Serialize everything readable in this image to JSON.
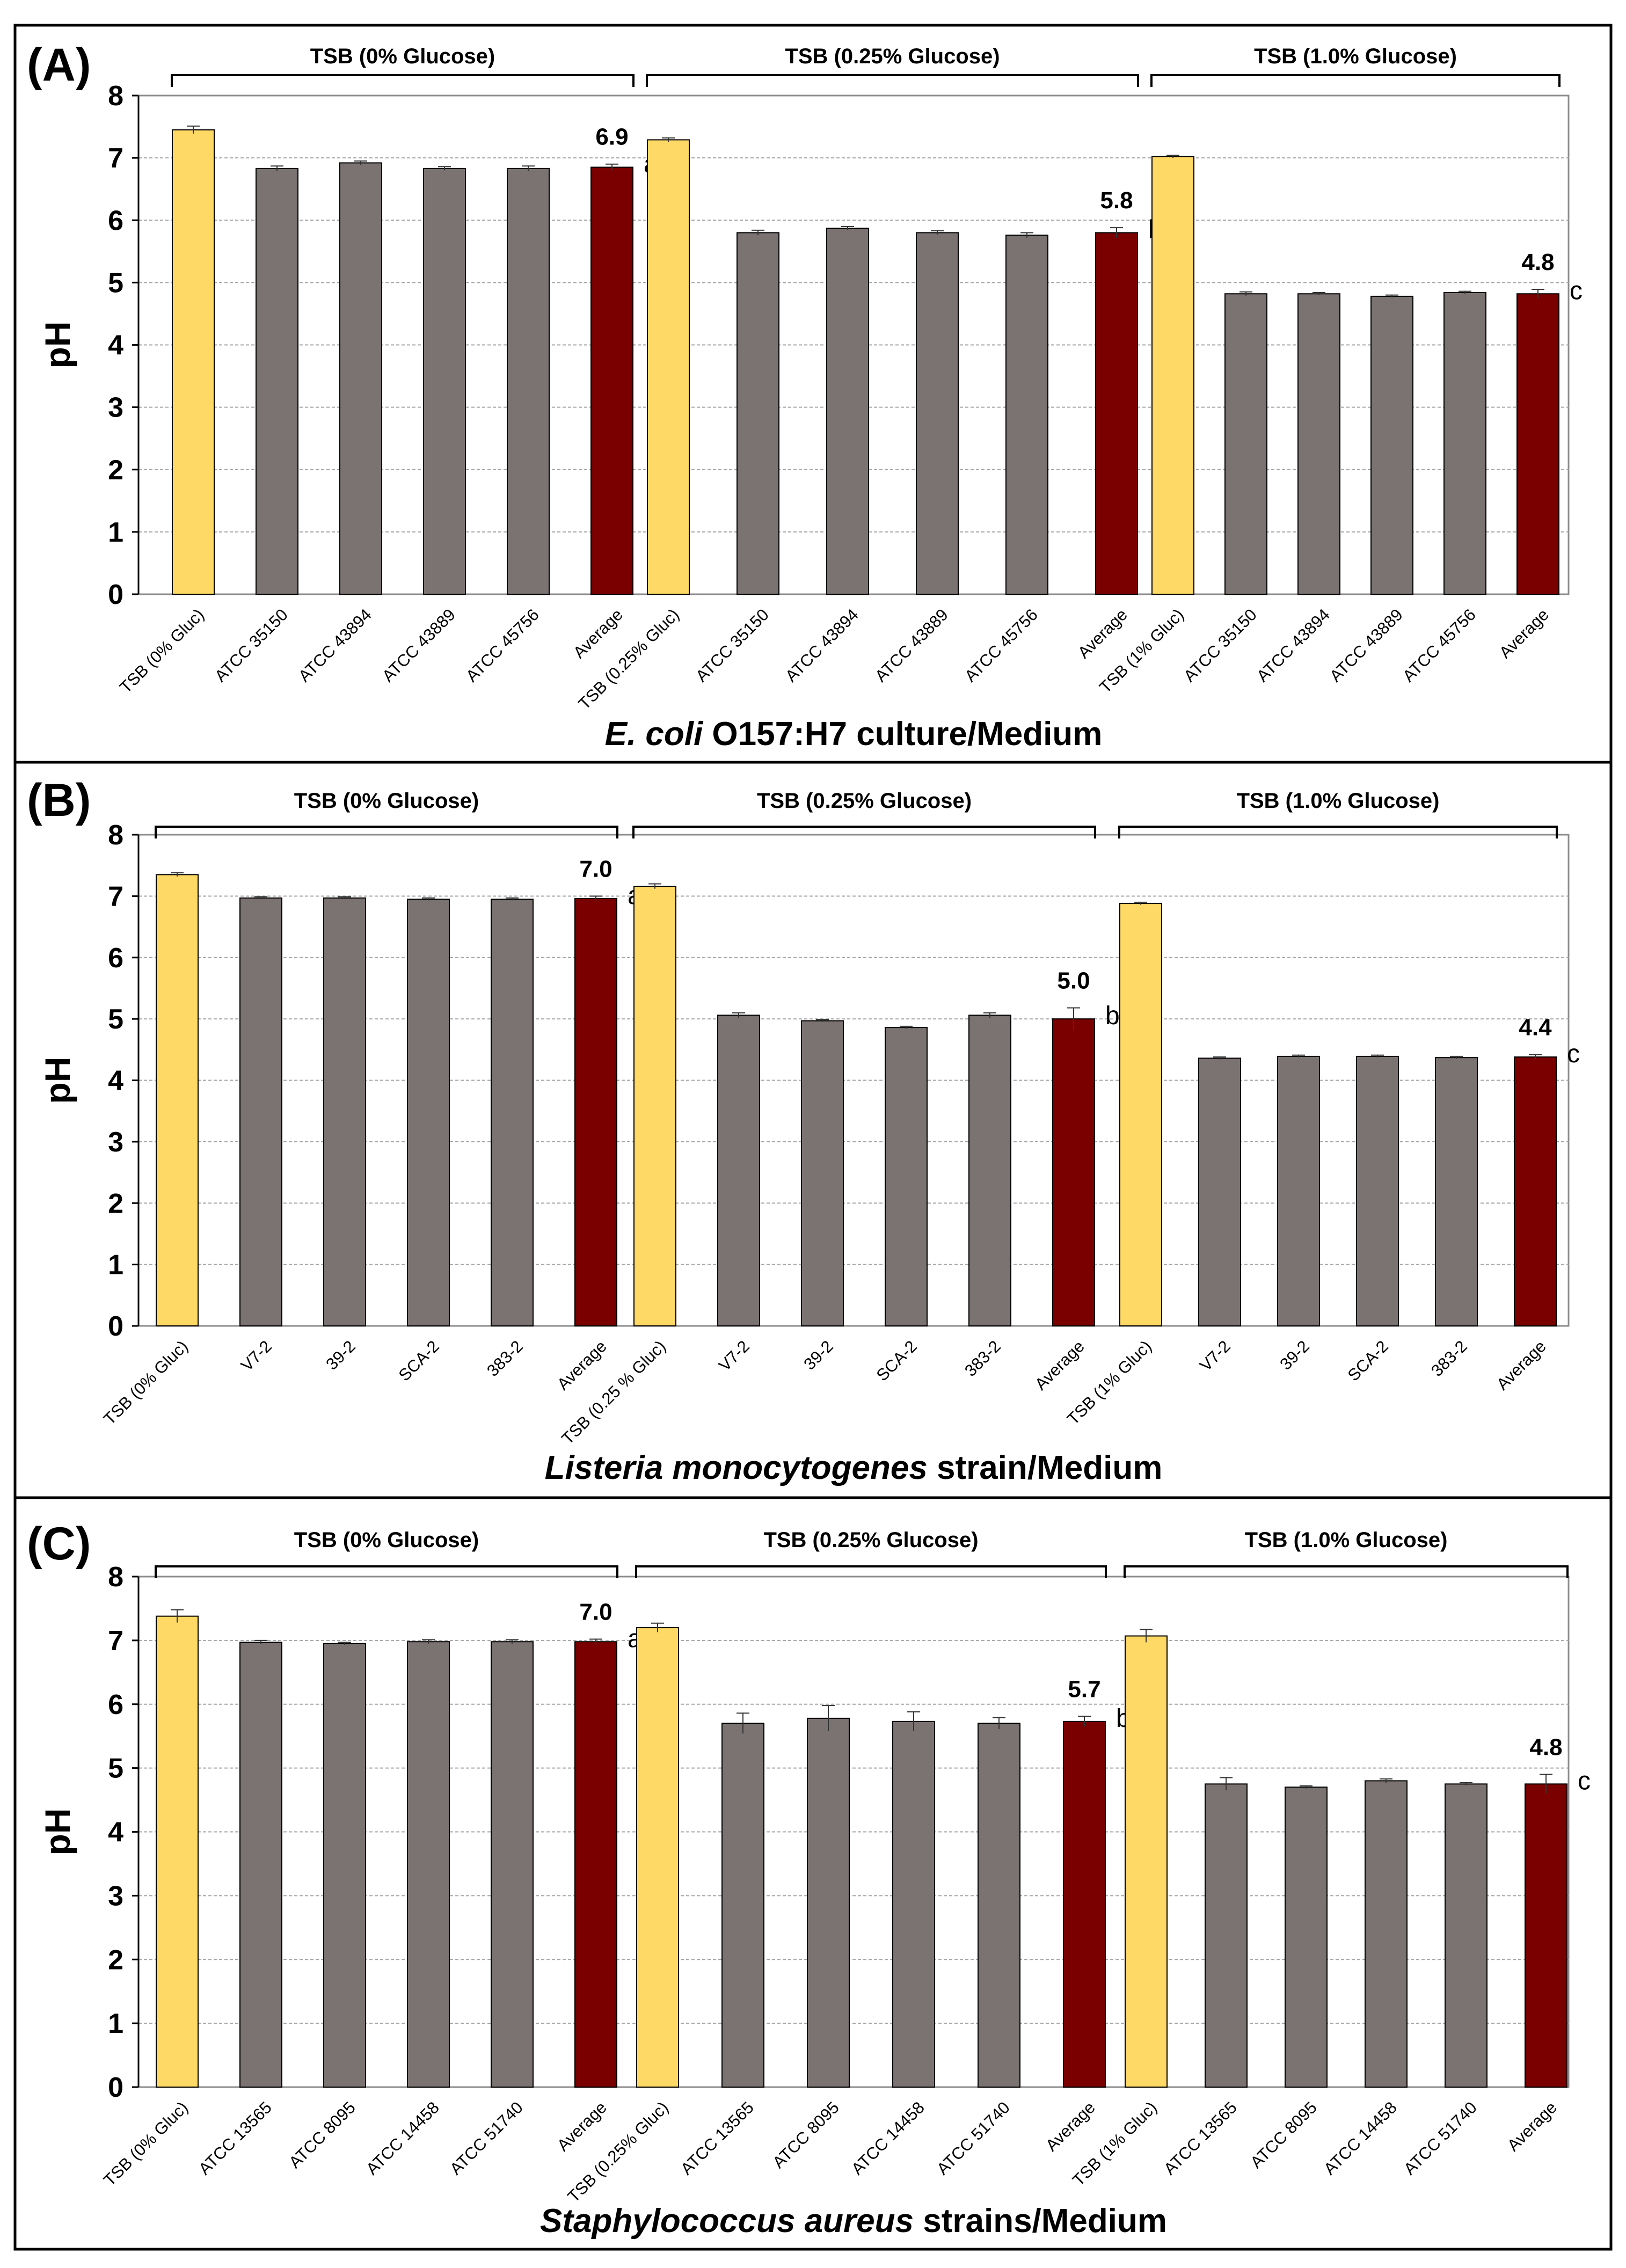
{
  "chart_data": [
    {
      "panel": "(A)",
      "type": "bar",
      "ylabel": "pH",
      "ylim": [
        0,
        8
      ],
      "yticks": [
        "0",
        "1",
        "2",
        "3",
        "4",
        "5",
        "6",
        "7",
        "8"
      ],
      "grid": true,
      "xlabel_italic": "E. coli",
      "xlabel_rest": " O157:H7 culture/Medium",
      "groups": [
        {
          "label": "TSB (0% Glucose)",
          "categories": [
            "TSB (0% Gluc)",
            "ATCC 35150",
            "ATCC 43894",
            "ATCC 43889",
            "ATCC 45756",
            "Average"
          ],
          "values": [
            7.45,
            6.83,
            6.92,
            6.83,
            6.83,
            6.85
          ],
          "errors": [
            0.06,
            0.04,
            0.03,
            0.03,
            0.04,
            0.05
          ],
          "avg_label": "6.9",
          "sig": "a"
        },
        {
          "label": "TSB (0.25% Glucose)",
          "categories": [
            "TSB (0.25% Gluc)",
            "ATCC 35150",
            "ATCC 43894",
            "ATCC 43889",
            "ATCC 45756",
            "Average"
          ],
          "values": [
            7.29,
            5.8,
            5.87,
            5.8,
            5.76,
            5.8
          ],
          "errors": [
            0.03,
            0.04,
            0.03,
            0.03,
            0.04,
            0.08
          ],
          "avg_label": "5.8",
          "sig": "b"
        },
        {
          "label": "TSB (1.0% Glucose)",
          "categories": [
            "TSB (1% Gluc)",
            "ATCC 35150",
            "ATCC 43894",
            "ATCC 43889",
            "ATCC 45756",
            "Average"
          ],
          "values": [
            7.02,
            4.82,
            4.82,
            4.78,
            4.84,
            4.82
          ],
          "errors": [
            0.02,
            0.03,
            0.02,
            0.02,
            0.02,
            0.07
          ],
          "avg_label": "4.8",
          "sig": "c"
        }
      ]
    },
    {
      "panel": "(B)",
      "type": "bar",
      "ylabel": "pH",
      "ylim": [
        0,
        8
      ],
      "yticks": [
        "0",
        "1",
        "2",
        "3",
        "4",
        "5",
        "6",
        "7",
        "8"
      ],
      "grid": true,
      "xlabel_italic": "Listeria monocytogenes",
      "xlabel_rest": " strain/Medium",
      "groups": [
        {
          "label": "TSB (0% Glucose)",
          "categories": [
            "TSB (0% Gluc)",
            "V7-2",
            "39-2",
            "SCA-2",
            "383-2",
            "Average"
          ],
          "values": [
            7.35,
            6.97,
            6.97,
            6.95,
            6.95,
            6.96
          ],
          "errors": [
            0.03,
            0.02,
            0.02,
            0.02,
            0.02,
            0.04
          ],
          "avg_label": "7.0",
          "sig": "a"
        },
        {
          "label": "TSB (0.25% Glucose)",
          "categories": [
            "TSB (0.25 % Gluc)",
            "V7-2",
            "39-2",
            "SCA-2",
            "383-2",
            "Average"
          ],
          "values": [
            7.16,
            5.06,
            4.97,
            4.86,
            5.06,
            5.0
          ],
          "errors": [
            0.04,
            0.04,
            0.02,
            0.02,
            0.04,
            0.18
          ],
          "avg_label": "5.0",
          "sig": "b"
        },
        {
          "label": "TSB (1.0% Glucose)",
          "categories": [
            "TSB (1% Gluc)",
            "V7-2",
            "39-2",
            "SCA-2",
            "383-2",
            "Average"
          ],
          "values": [
            6.88,
            4.36,
            4.39,
            4.39,
            4.37,
            4.38
          ],
          "errors": [
            0.02,
            0.02,
            0.02,
            0.02,
            0.02,
            0.04
          ],
          "avg_label": "4.4",
          "sig": "c"
        }
      ]
    },
    {
      "panel": "(C)",
      "type": "bar",
      "ylabel": "pH",
      "ylim": [
        0,
        8
      ],
      "yticks": [
        "0",
        "1",
        "2",
        "3",
        "4",
        "5",
        "6",
        "7",
        "8"
      ],
      "grid": true,
      "xlabel_italic": "Staphylococcus aureus",
      "xlabel_rest": " strains/Medium",
      "groups": [
        {
          "label": "TSB (0% Glucose)",
          "categories": [
            "TSB (0% Gluc)",
            "ATCC 13565",
            "ATCC 8095",
            "ATCC 14458",
            "ATCC 51740",
            "Average"
          ],
          "values": [
            7.38,
            6.97,
            6.95,
            6.98,
            6.98,
            6.98
          ],
          "errors": [
            0.1,
            0.03,
            0.02,
            0.03,
            0.03,
            0.04
          ],
          "avg_label": "7.0",
          "sig": "a"
        },
        {
          "label": "TSB (0.25% Glucose)",
          "categories": [
            "TSB (0.25% Gluc)",
            "ATCC 13565",
            "ATCC 8095",
            "ATCC 14458",
            "ATCC 51740",
            "Average"
          ],
          "values": [
            7.2,
            5.7,
            5.78,
            5.73,
            5.7,
            5.73
          ],
          "errors": [
            0.07,
            0.16,
            0.2,
            0.15,
            0.09,
            0.08
          ],
          "avg_label": "5.7",
          "sig": "b"
        },
        {
          "label": "TSB (1.0% Glucose)",
          "categories": [
            "TSB (1% Gluc)",
            "ATCC 13565",
            "ATCC 8095",
            "ATCC 14458",
            "ATCC 51740",
            "Average"
          ],
          "values": [
            7.07,
            4.75,
            4.7,
            4.8,
            4.75,
            4.75
          ],
          "errors": [
            0.1,
            0.1,
            0.02,
            0.03,
            0.02,
            0.15
          ],
          "avg_label": "4.8",
          "sig": "c"
        }
      ]
    }
  ],
  "colors": {
    "control": "#FFD966",
    "strain": "#7B7272",
    "average": "#7A0000",
    "grid": "#A6A6A6",
    "frame": "#000000"
  }
}
